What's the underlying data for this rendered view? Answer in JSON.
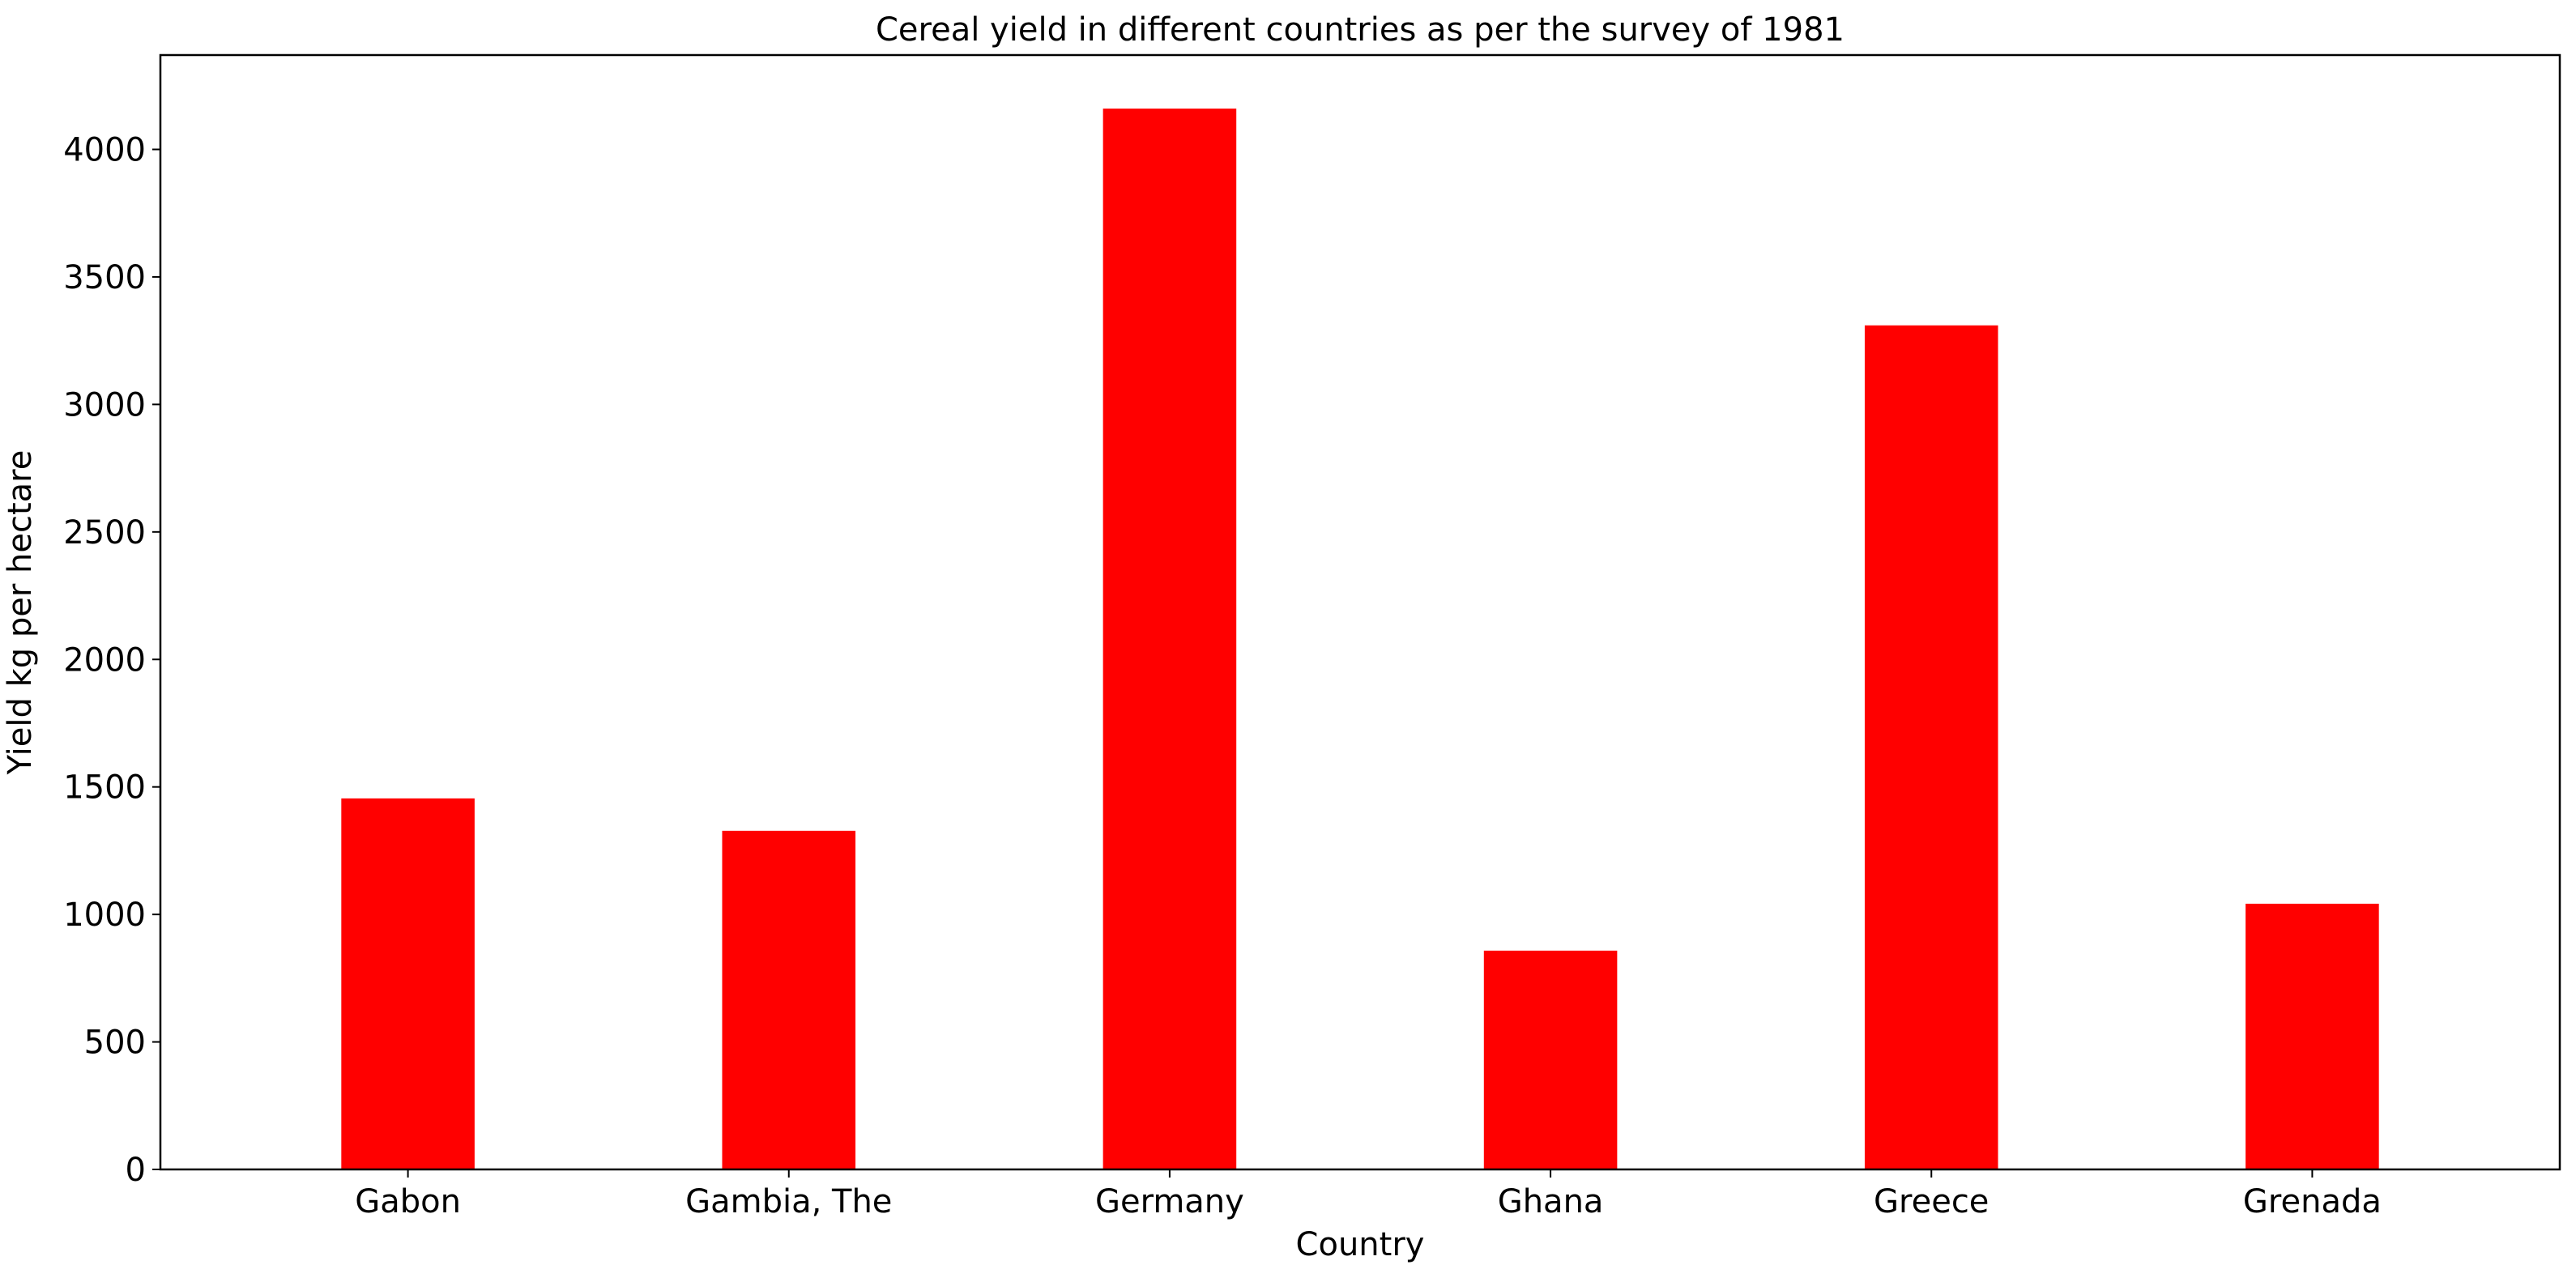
{
  "chart_data": {
    "type": "bar",
    "title": "Cereal yield in different countries as per the survey of 1981",
    "xlabel": "Country",
    "ylabel": "Yield kg per hectare",
    "categories": [
      "Gabon",
      "Gambia, The",
      "Germany",
      "Ghana",
      "Greece",
      "Grenada"
    ],
    "values": [
      1455,
      1328,
      4160,
      858,
      3310,
      1042
    ],
    "ylim": [
      0,
      4370
    ],
    "yticks": [
      0,
      500,
      1000,
      1500,
      2000,
      2500,
      3000,
      3500,
      4000
    ],
    "grid": false,
    "legend": "none",
    "bar_color": "#ff0000"
  }
}
